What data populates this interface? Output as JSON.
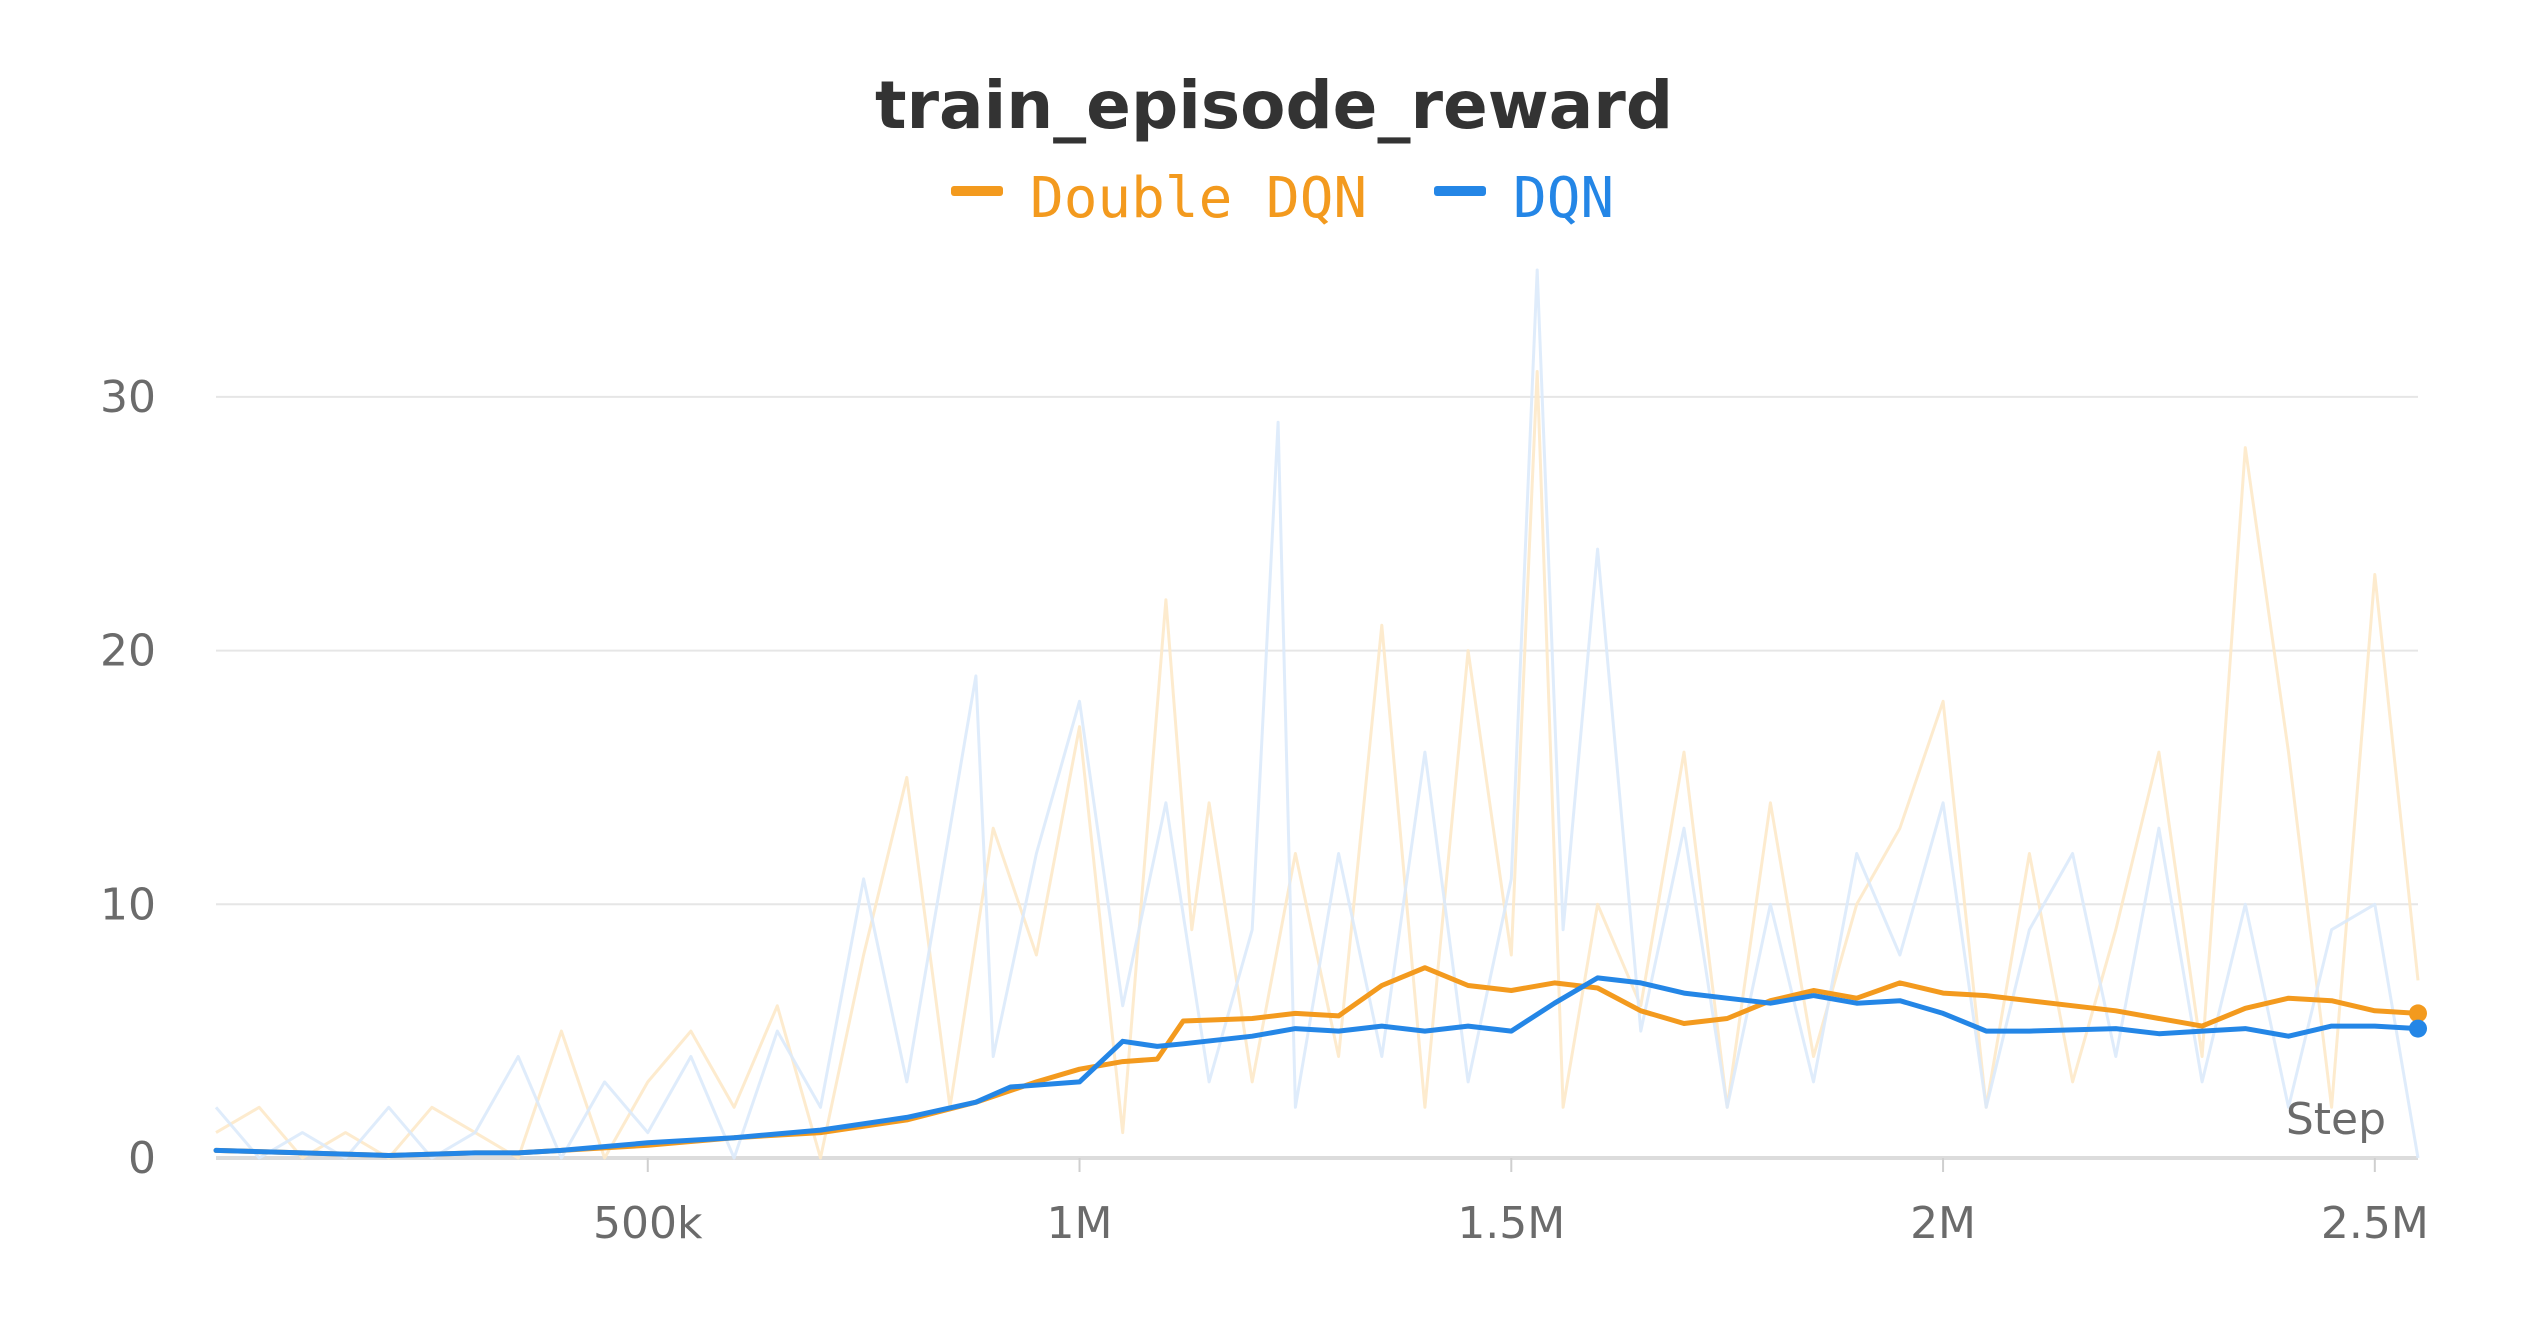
{
  "chart_data": {
    "type": "line",
    "title": "train_episode_reward",
    "xlabel": "Step",
    "ylabel": "",
    "xlim": [
      0,
      2550000
    ],
    "ylim": [
      0,
      35
    ],
    "x_ticks": [
      {
        "value": 500000,
        "label": "500k"
      },
      {
        "value": 1000000,
        "label": "1M"
      },
      {
        "value": 1500000,
        "label": "1.5M"
      },
      {
        "value": 2000000,
        "label": "2M"
      },
      {
        "value": 2500000,
        "label": "2.5M"
      }
    ],
    "y_ticks": [
      {
        "value": 0,
        "label": "0"
      },
      {
        "value": 10,
        "label": "10"
      },
      {
        "value": 20,
        "label": "20"
      },
      {
        "value": 30,
        "label": "30"
      }
    ],
    "grid": true,
    "legend_position": "top-center",
    "series": [
      {
        "name": "Double DQN",
        "color": "#f39a1e",
        "x": [
          0,
          100000,
          200000,
          300000,
          350000,
          400000,
          500000,
          600000,
          700000,
          800000,
          880000,
          950000,
          1000000,
          1050000,
          1090000,
          1120000,
          1200000,
          1250000,
          1300000,
          1350000,
          1400000,
          1450000,
          1500000,
          1550000,
          1600000,
          1650000,
          1700000,
          1750000,
          1800000,
          1850000,
          1900000,
          1950000,
          2000000,
          2050000,
          2100000,
          2200000,
          2250000,
          2300000,
          2350000,
          2400000,
          2450000,
          2500000,
          2550000
        ],
        "y": [
          0.3,
          0.2,
          0.1,
          0.2,
          0.2,
          0.3,
          0.5,
          0.8,
          1.0,
          1.5,
          2.2,
          3.0,
          3.5,
          3.8,
          3.9,
          5.4,
          5.5,
          5.7,
          5.6,
          6.8,
          7.5,
          6.8,
          6.6,
          6.9,
          6.7,
          5.8,
          5.3,
          5.5,
          6.2,
          6.6,
          6.3,
          6.9,
          6.5,
          6.4,
          6.2,
          5.8,
          5.5,
          5.2,
          5.9,
          6.3,
          6.2,
          5.8,
          5.7
        ]
      },
      {
        "name": "DQN",
        "color": "#2486e6",
        "x": [
          0,
          100000,
          200000,
          300000,
          350000,
          400000,
          500000,
          600000,
          700000,
          800000,
          880000,
          920000,
          1000000,
          1050000,
          1090000,
          1120000,
          1200000,
          1250000,
          1300000,
          1350000,
          1400000,
          1450000,
          1500000,
          1550000,
          1600000,
          1650000,
          1700000,
          1750000,
          1800000,
          1850000,
          1900000,
          1950000,
          2000000,
          2050000,
          2100000,
          2200000,
          2250000,
          2300000,
          2350000,
          2400000,
          2450000,
          2500000,
          2550000
        ],
        "y": [
          0.3,
          0.2,
          0.1,
          0.2,
          0.2,
          0.3,
          0.6,
          0.8,
          1.1,
          1.6,
          2.2,
          2.8,
          3.0,
          4.6,
          4.4,
          4.5,
          4.8,
          5.1,
          5.0,
          5.2,
          5.0,
          5.2,
          5.0,
          6.1,
          7.1,
          6.9,
          6.5,
          6.3,
          6.1,
          6.4,
          6.1,
          6.2,
          5.7,
          5.0,
          5.0,
          5.1,
          4.9,
          5.0,
          5.1,
          4.8,
          5.2,
          5.2,
          5.1
        ]
      }
    ],
    "raw_series": [
      {
        "name": "Double DQN",
        "color": "#fde9c9",
        "x": [
          0,
          50000,
          100000,
          150000,
          200000,
          250000,
          300000,
          350000,
          400000,
          450000,
          500000,
          550000,
          600000,
          650000,
          700000,
          750000,
          800000,
          850000,
          900000,
          950000,
          1000000,
          1050000,
          1100000,
          1130000,
          1150000,
          1200000,
          1250000,
          1300000,
          1350000,
          1400000,
          1450000,
          1500000,
          1530000,
          1560000,
          1600000,
          1650000,
          1700000,
          1750000,
          1800000,
          1850000,
          1900000,
          1950000,
          2000000,
          2050000,
          2100000,
          2150000,
          2200000,
          2250000,
          2300000,
          2350000,
          2400000,
          2450000,
          2500000,
          2550000
        ],
        "y": [
          1,
          2,
          0,
          1,
          0,
          2,
          1,
          0,
          5,
          0,
          3,
          5,
          2,
          6,
          0,
          8,
          15,
          2,
          13,
          8,
          17,
          1,
          22,
          9,
          14,
          3,
          12,
          4,
          21,
          2,
          20,
          8,
          31,
          2,
          10,
          6,
          16,
          2,
          14,
          4,
          10,
          13,
          18,
          2,
          12,
          3,
          9,
          16,
          4,
          28,
          16,
          2,
          23,
          7
        ]
      },
      {
        "name": "DQN",
        "color": "#dbeafb",
        "x": [
          0,
          50000,
          100000,
          150000,
          200000,
          250000,
          300000,
          350000,
          400000,
          450000,
          500000,
          550000,
          600000,
          650000,
          700000,
          750000,
          800000,
          850000,
          880000,
          900000,
          950000,
          1000000,
          1050000,
          1100000,
          1150000,
          1200000,
          1230000,
          1250000,
          1300000,
          1350000,
          1400000,
          1450000,
          1500000,
          1530000,
          1560000,
          1600000,
          1650000,
          1700000,
          1750000,
          1800000,
          1850000,
          1900000,
          1950000,
          2000000,
          2050000,
          2100000,
          2150000,
          2200000,
          2250000,
          2300000,
          2350000,
          2400000,
          2450000,
          2500000,
          2550000
        ],
        "y": [
          2,
          0,
          1,
          0,
          2,
          0,
          1,
          4,
          0,
          3,
          1,
          4,
          0,
          5,
          2,
          11,
          3,
          13,
          19,
          4,
          12,
          18,
          6,
          14,
          3,
          9,
          29,
          2,
          12,
          4,
          16,
          3,
          11,
          35,
          9,
          24,
          5,
          13,
          2,
          10,
          3,
          12,
          8,
          14,
          2,
          9,
          12,
          4,
          13,
          3,
          10,
          2,
          9,
          10,
          0
        ]
      }
    ]
  }
}
